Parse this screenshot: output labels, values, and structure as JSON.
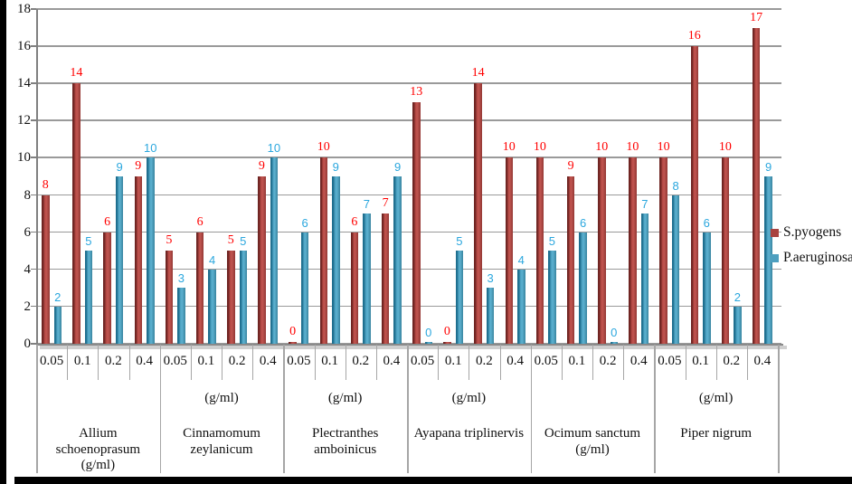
{
  "chart_data": {
    "type": "bar",
    "title": "",
    "xlabel": "",
    "ylabel": "",
    "ylim": [
      0,
      18
    ],
    "yticks": [
      0,
      2,
      4,
      6,
      8,
      10,
      12,
      14,
      16,
      18
    ],
    "grid": "horizontal",
    "legend_position": "right",
    "concentrations": [
      "0.05",
      "0.1",
      "0.2",
      "0.4"
    ],
    "series": [
      {
        "name": "S.pyogens",
        "color": "#a84340",
        "label_color": "#ff0000"
      },
      {
        "name": "P.aeruginosa",
        "color": "#4e9fbf",
        "label_color": "#2ba7de"
      }
    ],
    "groups": [
      {
        "name_lines": [
          "Allium",
          "schoenoprasum",
          "(g/ml)"
        ],
        "unit_above": "",
        "values": [
          [
            8,
            14,
            6,
            9
          ],
          [
            2,
            5,
            9,
            10
          ]
        ]
      },
      {
        "name_lines": [
          "Cinnamomum",
          "zeylanicum"
        ],
        "unit_above": "(g/ml)",
        "values": [
          [
            5,
            6,
            5,
            9
          ],
          [
            3,
            4,
            5,
            10
          ]
        ]
      },
      {
        "name_lines": [
          "Plectranthes",
          "amboinicus"
        ],
        "unit_above": "(g/ml)",
        "values": [
          [
            0,
            10,
            6,
            7
          ],
          [
            6,
            9,
            7,
            9
          ]
        ]
      },
      {
        "name_lines": [
          "Ayapana triplinervis"
        ],
        "unit_above": "(g/ml)",
        "values": [
          [
            13,
            0,
            14,
            10
          ],
          [
            0,
            5,
            3,
            4
          ]
        ]
      },
      {
        "name_lines": [
          "Ocimum sanctum",
          "(g/ml)"
        ],
        "unit_above": "",
        "values": [
          [
            10,
            9,
            10,
            10
          ],
          [
            5,
            6,
            0,
            7
          ]
        ]
      },
      {
        "name_lines": [
          "Piper nigrum"
        ],
        "unit_above": "(g/ml)",
        "values": [
          [
            10,
            16,
            10,
            17
          ],
          [
            8,
            6,
            2,
            9
          ]
        ]
      }
    ]
  },
  "colors": {
    "gridline": "#9a9a9a",
    "axis": "#808080",
    "separator": "#a6a6a6",
    "background": "#ffffff",
    "edge_band": "#000000"
  }
}
